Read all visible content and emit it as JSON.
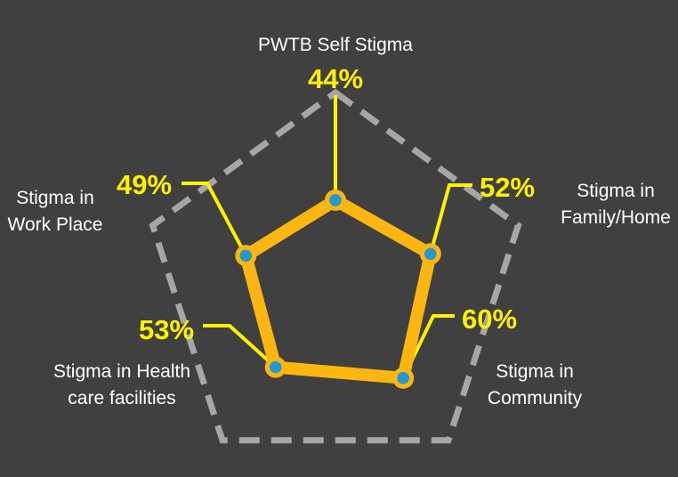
{
  "chart_data": {
    "type": "radar",
    "title": "",
    "max": 100,
    "grid": "single dashed pentagon at 100%, no axis lines",
    "legend_position": "none",
    "categories": [
      "PWTB Self Stigma",
      "Stigma in Family/Home",
      "Stigma in Community",
      "Stigma in Health care facilities",
      "Stigma in Work Place"
    ],
    "values": [
      44,
      52,
      60,
      53,
      49
    ],
    "axes": [
      {
        "label": "PWTB Self Stigma",
        "display": "PWTB Self Stigma",
        "value": 44,
        "pct": "44%"
      },
      {
        "label": "Stigma in Family/Home",
        "display": "Stigma in\nFamily/Home",
        "value": 52,
        "pct": "52%"
      },
      {
        "label": "Stigma in Community",
        "display": "Stigma in\nCommunity",
        "value": 60,
        "pct": "60%"
      },
      {
        "label": "Stigma in Health care facilities",
        "display": "Stigma in Health\ncare facilities",
        "value": 53,
        "pct": "53%"
      },
      {
        "label": "Stigma in Work Place",
        "display": "Stigma in\nWork Place",
        "value": 49,
        "pct": "49%"
      }
    ],
    "style": {
      "background": "#404040",
      "grid_color": "#a6a6a6",
      "series_color": "#fbb612",
      "marker_fill": "#2598ce",
      "marker_ring": "#fbb612",
      "callout_color": "#fdf000",
      "value_text_color": "#fdf000",
      "category_text_color": "#ffffff"
    }
  }
}
